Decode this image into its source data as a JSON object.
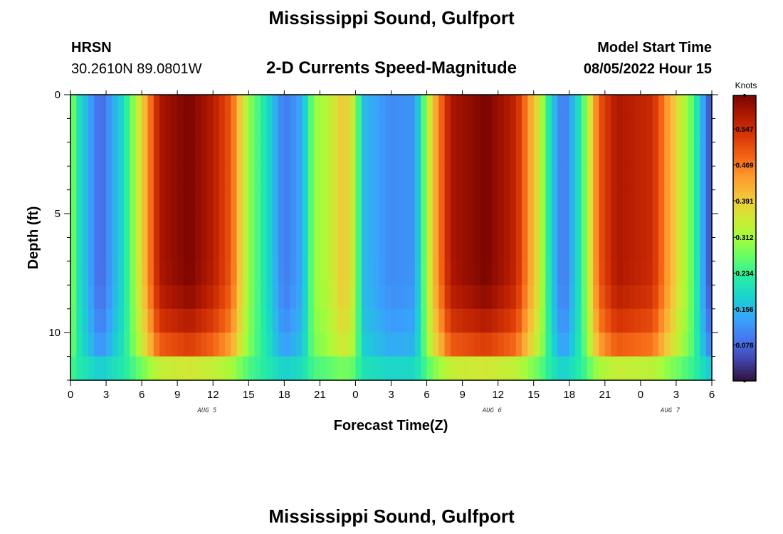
{
  "header": {
    "title": "Mississippi Sound, Gulfport",
    "station_id": "HRSN",
    "coordinates": "30.2610N  89.0801W",
    "subtitle": "2-D Currents Speed-Magnitude",
    "model_start_label": "Model Start Time",
    "model_start_value": "08/05/2022 Hour 15"
  },
  "footer": {
    "title_repeat": "Mississippi Sound, Gulfport"
  },
  "chart_data": {
    "type": "heatmap",
    "title": "2-D Currents Speed-Magnitude",
    "xlabel": "Forecast Time(Z)",
    "ylabel": "Depth (ft)",
    "xlim_hours": [
      0,
      54
    ],
    "ylim_ft": [
      0,
      12
    ],
    "x_ticks": [
      "0",
      "3",
      "6",
      "9",
      "12",
      "15",
      "18",
      "21",
      "0",
      "3",
      "6",
      "9",
      "12",
      "15",
      "18",
      "21",
      "0",
      "3",
      "6"
    ],
    "date_labels": [
      {
        "text": "AUG 5",
        "hour": 11.5
      },
      {
        "text": "AUG 6",
        "hour": 35.5
      },
      {
        "text": "AUG 7",
        "hour": 50.5
      }
    ],
    "y_ticks": [
      0,
      5,
      10
    ],
    "colorbar": {
      "label": "Knots",
      "min": 0.0,
      "max": 0.62,
      "ticks": [
        "0.547",
        "0.469",
        "0.391",
        "0.312",
        "0.234",
        "0.156",
        "0.078"
      ],
      "tick_values": [
        0.547,
        0.469,
        0.391,
        0.312,
        0.234,
        0.156,
        0.078
      ]
    },
    "ncols": 108,
    "nrows": 12,
    "surface_speed_keypoints": [
      [
        0,
        0.3
      ],
      [
        0.75,
        0.2
      ],
      [
        2.5,
        0.07
      ],
      [
        4.5,
        0.2
      ],
      [
        6,
        0.38
      ],
      [
        7.5,
        0.58
      ],
      [
        10,
        0.62
      ],
      [
        12,
        0.57
      ],
      [
        13.5,
        0.5
      ],
      [
        15,
        0.3
      ],
      [
        16.5,
        0.2
      ],
      [
        18,
        0.09
      ],
      [
        19.5,
        0.14
      ],
      [
        20.5,
        0.3
      ],
      [
        21.5,
        0.32
      ],
      [
        23,
        0.4
      ],
      [
        24,
        0.33
      ],
      [
        24.5,
        0.16
      ],
      [
        27,
        0.11
      ],
      [
        29,
        0.12
      ],
      [
        30.5,
        0.4
      ],
      [
        32,
        0.58
      ],
      [
        35,
        0.62
      ],
      [
        37.5,
        0.56
      ],
      [
        39.5,
        0.35
      ],
      [
        40.5,
        0.18
      ],
      [
        41.5,
        0.08
      ],
      [
        43,
        0.22
      ],
      [
        44.5,
        0.5
      ],
      [
        46,
        0.58
      ],
      [
        49,
        0.55
      ],
      [
        51,
        0.38
      ],
      [
        52.5,
        0.25
      ],
      [
        53.5,
        0.1
      ],
      [
        54,
        0.04
      ]
    ],
    "palette": [
      "#30123b",
      "#4143a7",
      "#4675ed",
      "#39a2fc",
      "#1bcfd4",
      "#24eca6",
      "#61fc6c",
      "#a4fc3b",
      "#d1e834",
      "#f3c63a",
      "#fe9b2d",
      "#f36315",
      "#d93806",
      "#b11901",
      "#7a0402"
    ]
  }
}
